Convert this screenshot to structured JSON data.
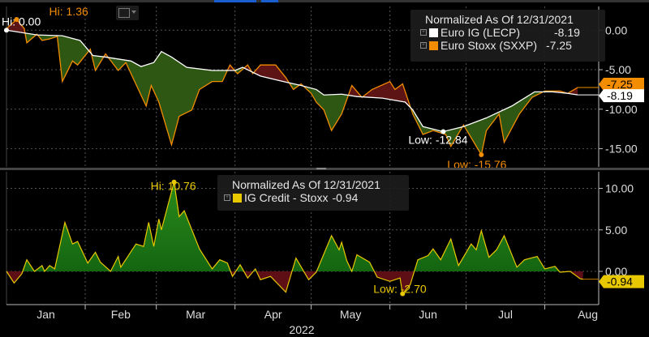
{
  "chart_data": [
    {
      "type": "area",
      "legend_title": "Normalized As Of 12/31/2021",
      "legend_placement": "top-right",
      "grid": true,
      "ylim": [
        -17.3,
        3
      ],
      "yticks": [
        "0.00",
        "-5.00",
        "-10.00",
        "-15.00"
      ],
      "ytick_values": [
        0,
        -5,
        -10,
        -15
      ],
      "series": [
        {
          "name": "Euro IG (LECP)",
          "last": "-8.19",
          "color": "#ffffff",
          "points": [
            [
              "2022-01-01",
              0
            ],
            [
              "2022-01-13",
              -0.6
            ],
            [
              "2022-01-23",
              -0.7
            ],
            [
              "2022-01-30",
              -1.3
            ],
            [
              "2022-02-04",
              -3.2
            ],
            [
              "2022-02-09",
              -3.4
            ],
            [
              "2022-02-19",
              -3.9
            ],
            [
              "2022-02-23",
              -4.6
            ],
            [
              "2022-02-28",
              -4.1
            ],
            [
              "2022-03-03",
              -2.7
            ],
            [
              "2022-03-07",
              -3.4
            ],
            [
              "2022-03-13",
              -4.7
            ],
            [
              "2022-03-23",
              -5.1
            ],
            [
              "2022-04-01",
              -5.1
            ],
            [
              "2022-04-04",
              -4.7
            ],
            [
              "2022-04-11",
              -5.8
            ],
            [
              "2022-04-20",
              -6.5
            ],
            [
              "2022-04-27",
              -7.0
            ],
            [
              "2022-05-03",
              -7.5
            ],
            [
              "2022-05-06",
              -8.2
            ],
            [
              "2022-05-13",
              -8.1
            ],
            [
              "2022-05-19",
              -8.4
            ],
            [
              "2022-05-29",
              -8.6
            ],
            [
              "2022-06-07",
              -9.1
            ],
            [
              "2022-06-10",
              -10.1
            ],
            [
              "2022-06-14",
              -12.2
            ],
            [
              "2022-06-22",
              -12.84
            ],
            [
              "2022-06-30",
              -12.2
            ],
            [
              "2022-07-09",
              -11.1
            ],
            [
              "2022-07-19",
              -9.6
            ],
            [
              "2022-07-28",
              -7.8
            ],
            [
              "2022-08-04",
              -7.8
            ],
            [
              "2022-08-10",
              -8.0
            ],
            [
              "2022-08-14",
              -8.19
            ]
          ]
        },
        {
          "name": "Euro Stoxx (SXXP)",
          "last": "-7.25",
          "color": "#f28c00",
          "points": [
            [
              "2022-01-01",
              0.2
            ],
            [
              "2022-01-05",
              1.36
            ],
            [
              "2022-01-08",
              0.2
            ],
            [
              "2022-01-09",
              -1.6
            ],
            [
              "2022-01-13",
              -0.5
            ],
            [
              "2022-01-15",
              -1.3
            ],
            [
              "2022-01-18",
              -1.1
            ],
            [
              "2022-01-21",
              -0.8
            ],
            [
              "2022-01-23",
              -6.5
            ],
            [
              "2022-01-27",
              -3.9
            ],
            [
              "2022-01-29",
              -4.4
            ],
            [
              "2022-02-03",
              -2.4
            ],
            [
              "2022-02-05",
              -5.1
            ],
            [
              "2022-02-09",
              -3.0
            ],
            [
              "2022-02-14",
              -5.1
            ],
            [
              "2022-02-17",
              -4.1
            ],
            [
              "2022-02-25",
              -9.6
            ],
            [
              "2022-02-27",
              -7.0
            ],
            [
              "2022-03-02",
              -9.1
            ],
            [
              "2022-03-07",
              -14.5
            ],
            [
              "2022-03-10",
              -10.9
            ],
            [
              "2022-03-15",
              -10.1
            ],
            [
              "2022-03-18",
              -7.5
            ],
            [
              "2022-03-23",
              -6.5
            ],
            [
              "2022-03-27",
              -6.5
            ],
            [
              "2022-03-30",
              -4.4
            ],
            [
              "2022-04-02",
              -5.5
            ],
            [
              "2022-04-06",
              -4.4
            ],
            [
              "2022-04-08",
              -5.5
            ],
            [
              "2022-04-11",
              -4.4
            ],
            [
              "2022-04-17",
              -4.4
            ],
            [
              "2022-04-21",
              -6.0
            ],
            [
              "2022-04-24",
              -7.5
            ],
            [
              "2022-04-27",
              -6.8
            ],
            [
              "2022-05-01",
              -8.0
            ],
            [
              "2022-05-03",
              -9.1
            ],
            [
              "2022-05-06",
              -10.1
            ],
            [
              "2022-05-09",
              -12.7
            ],
            [
              "2022-05-13",
              -10.6
            ],
            [
              "2022-05-17",
              -7.0
            ],
            [
              "2022-05-21",
              -8.5
            ],
            [
              "2022-05-25",
              -7.5
            ],
            [
              "2022-06-01",
              -6.5
            ],
            [
              "2022-06-03",
              -7.5
            ],
            [
              "2022-06-06",
              -6.8
            ],
            [
              "2022-06-10",
              -10.6
            ],
            [
              "2022-06-14",
              -13.2
            ],
            [
              "2022-06-18",
              -12.7
            ],
            [
              "2022-06-23",
              -13.2
            ],
            [
              "2022-06-25",
              -14.7
            ],
            [
              "2022-06-30",
              -12.0
            ],
            [
              "2022-07-07",
              -15.76
            ],
            [
              "2022-07-09",
              -12.7
            ],
            [
              "2022-07-14",
              -10.6
            ],
            [
              "2022-07-16",
              -14.2
            ],
            [
              "2022-07-22",
              -10.6
            ],
            [
              "2022-07-27",
              -8.5
            ],
            [
              "2022-08-01",
              -7.7
            ],
            [
              "2022-08-07",
              -7.7
            ],
            [
              "2022-08-10",
              -8.0
            ],
            [
              "2022-08-14",
              -7.25
            ]
          ]
        }
      ],
      "fill_colors": {
        "below": "#2e5714",
        "above": "#5c1414"
      },
      "annotations": [
        {
          "text": "Hi: 0.00",
          "series": 0,
          "date": "2022-01-01",
          "value": 0
        },
        {
          "text": "Hi: 1.36",
          "series": 1,
          "date": "2022-01-05",
          "value": 1.36
        },
        {
          "text": "Low: -12.84",
          "series": 0,
          "date": "2022-06-22",
          "value": -12.84
        },
        {
          "text": "Low: -15.76",
          "series": 1,
          "date": "2022-07-07",
          "value": -15.76
        }
      ]
    },
    {
      "type": "area",
      "legend_title": "Normalized As Of 12/31/2021",
      "legend_placement": "top-center",
      "grid": true,
      "ylim": [
        -4,
        12
      ],
      "yticks": [
        "10.00",
        "5.00",
        "0.00"
      ],
      "ytick_values": [
        10,
        5,
        0
      ],
      "series": [
        {
          "name": "IG Credit - Stoxx",
          "last": "-0.94",
          "color": "#e8c800",
          "points": [
            [
              "2022-01-01",
              0
            ],
            [
              "2022-01-04",
              -1.4
            ],
            [
              "2022-01-07",
              -0.3
            ],
            [
              "2022-01-09",
              1.4
            ],
            [
              "2022-01-12",
              0
            ],
            [
              "2022-01-15",
              0.7
            ],
            [
              "2022-01-16",
              0
            ],
            [
              "2022-01-18",
              0.7
            ],
            [
              "2022-01-20",
              0.3
            ],
            [
              "2022-01-24",
              5.9
            ],
            [
              "2022-01-27",
              3.3
            ],
            [
              "2022-01-29",
              3.6
            ],
            [
              "2022-02-02",
              1
            ],
            [
              "2022-02-05",
              2.3
            ],
            [
              "2022-02-07",
              1.1
            ],
            [
              "2022-02-11",
              0
            ],
            [
              "2022-02-14",
              1.8
            ],
            [
              "2022-02-15",
              0.5
            ],
            [
              "2022-02-21",
              3.3
            ],
            [
              "2022-02-24",
              3
            ],
            [
              "2022-02-26",
              5.9
            ],
            [
              "2022-02-28",
              3
            ],
            [
              "2022-03-02",
              6.3
            ],
            [
              "2022-03-03",
              5
            ],
            [
              "2022-03-08",
              10.76
            ],
            [
              "2022-03-10",
              6.6
            ],
            [
              "2022-03-12",
              7.3
            ],
            [
              "2022-03-18",
              2.7
            ],
            [
              "2022-03-23",
              0.3
            ],
            [
              "2022-03-26",
              1.4
            ],
            [
              "2022-03-29",
              1
            ],
            [
              "2022-03-31",
              -0.6
            ],
            [
              "2022-04-03",
              0.8
            ],
            [
              "2022-04-06",
              -0.8
            ],
            [
              "2022-04-09",
              0.3
            ],
            [
              "2022-04-11",
              -1
            ],
            [
              "2022-04-15",
              -0.6
            ],
            [
              "2022-04-21",
              -2.5
            ],
            [
              "2022-04-25",
              1.6
            ],
            [
              "2022-04-30",
              -1
            ],
            [
              "2022-05-03",
              -0.1
            ],
            [
              "2022-05-09",
              4.3
            ],
            [
              "2022-05-12",
              2.6
            ],
            [
              "2022-05-13",
              3.5
            ],
            [
              "2022-05-15",
              1.3
            ],
            [
              "2022-05-17",
              0
            ],
            [
              "2022-05-19",
              2
            ],
            [
              "2022-05-24",
              1.1
            ],
            [
              "2022-05-27",
              -0.7
            ],
            [
              "2022-06-01",
              -1.2
            ],
            [
              "2022-06-05",
              -0.8
            ],
            [
              "2022-06-06",
              -2.7
            ],
            [
              "2022-06-09",
              -1.6
            ],
            [
              "2022-06-12",
              1.4
            ],
            [
              "2022-06-16",
              1.9
            ],
            [
              "2022-06-18",
              2.7
            ],
            [
              "2022-06-21",
              1.4
            ],
            [
              "2022-06-25",
              3.9
            ],
            [
              "2022-06-28",
              0.7
            ],
            [
              "2022-07-03",
              3.3
            ],
            [
              "2022-07-05",
              2.6
            ],
            [
              "2022-07-07",
              4.9
            ],
            [
              "2022-07-10",
              1.7
            ],
            [
              "2022-07-13",
              2.6
            ],
            [
              "2022-07-16",
              4.3
            ],
            [
              "2022-07-21",
              0.5
            ],
            [
              "2022-07-24",
              1.4
            ],
            [
              "2022-07-29",
              1.8
            ],
            [
              "2022-08-01",
              0.3
            ],
            [
              "2022-08-05",
              0.6
            ],
            [
              "2022-08-07",
              -0.1
            ],
            [
              "2022-08-11",
              0
            ],
            [
              "2022-08-15",
              -0.9
            ],
            [
              "2022-08-16",
              -0.94
            ]
          ]
        }
      ],
      "fill_colors": {
        "positive": "#0f5c0f",
        "negative": "#5e0f16"
      },
      "annotations": [
        {
          "text": "Hi: 10.76",
          "date": "2022-03-08",
          "value": 10.76
        },
        {
          "text": "Low: -2.70",
          "date": "2022-06-06",
          "value": -2.7
        }
      ]
    }
  ],
  "x_axis": {
    "months": [
      "Jan",
      "Feb",
      "Mar",
      "Apr",
      "May",
      "Jun",
      "Jul",
      "Aug"
    ],
    "year": "2022"
  }
}
